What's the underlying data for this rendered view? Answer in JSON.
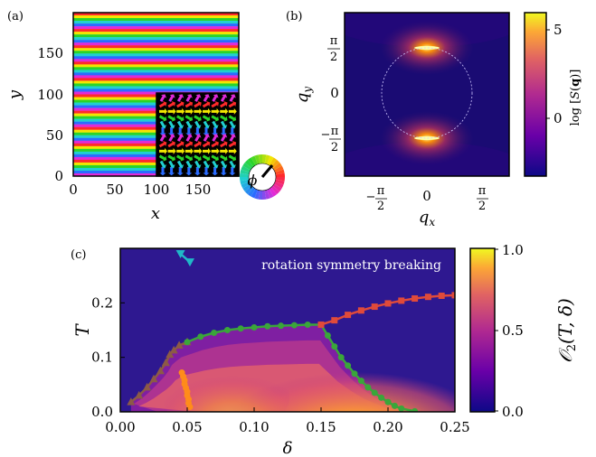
{
  "chart_data": [
    {
      "panel": "(a)",
      "type": "heatmap",
      "xlabel": "x",
      "ylabel": "y",
      "xlim": [
        0,
        200
      ],
      "ylim": [
        0,
        200
      ],
      "xticks": [
        0,
        50,
        100,
        150
      ],
      "yticks": [
        0,
        50,
        100,
        150
      ],
      "inset_region": {
        "x": [
          100,
          200
        ],
        "y": [
          0,
          100
        ]
      },
      "colorwheel_label": "ϕ",
      "colors": {
        "red": "#ff2a2a",
        "yellow": "#f2e600",
        "green": "#2ad42a",
        "cyan": "#20d0d0",
        "blue": "#2a6cff",
        "magenta": "#e02ad8"
      }
    },
    {
      "panel": "(b)",
      "type": "heatmap",
      "xlabel": "q_x",
      "ylabel": "q_y",
      "xticks": [
        "−π/2",
        "0",
        "π/2"
      ],
      "yticks": [
        "π/2",
        "0",
        "−π/2"
      ],
      "peaks": [
        {
          "qx": 0,
          "qy": 1.57
        },
        {
          "qx": 0,
          "qy": -1.57
        }
      ],
      "colorbar_label": "log[S(q)]",
      "colorbar_ticks": [
        5,
        0
      ],
      "colormap": "plasma"
    },
    {
      "panel": "(c)",
      "type": "heatmap",
      "xlabel": "δ",
      "ylabel": "T",
      "xlim": [
        0,
        0.25
      ],
      "ylim": [
        0,
        0.3
      ],
      "xticks": [
        "0.00",
        "0.05",
        "0.10",
        "0.15",
        "0.20",
        "0.25"
      ],
      "yticks": [
        "0.0",
        "0.1",
        "0.2"
      ],
      "annotation": "rotation symmetry breaking",
      "colorbar_label": "O₂(T, δ)",
      "colorbar_ticks": [
        "1.0",
        "0.5",
        "0.0"
      ],
      "colormap": "plasma",
      "series": [
        {
          "marker": "triangle",
          "color": "#8c5a46",
          "x": [
            0.008,
            0.014,
            0.02,
            0.025,
            0.03,
            0.034,
            0.037,
            0.04,
            0.044,
            0.05
          ],
          "y": [
            0.018,
            0.03,
            0.045,
            0.06,
            0.075,
            0.09,
            0.105,
            0.113,
            0.122,
            0.128
          ]
        },
        {
          "marker": "circle",
          "color": "#3aa63a",
          "x": [
            0.05,
            0.06,
            0.07,
            0.08,
            0.09,
            0.1,
            0.11,
            0.12,
            0.13,
            0.14,
            0.15,
            0.155,
            0.16,
            0.165,
            0.17,
            0.175,
            0.18,
            0.185,
            0.19,
            0.195,
            0.2,
            0.205,
            0.21,
            0.22
          ],
          "y": [
            0.128,
            0.138,
            0.145,
            0.15,
            0.153,
            0.155,
            0.157,
            0.158,
            0.159,
            0.16,
            0.16,
            0.14,
            0.12,
            0.1,
            0.085,
            0.07,
            0.057,
            0.045,
            0.035,
            0.026,
            0.018,
            0.011,
            0.006,
            0.001
          ]
        },
        {
          "marker": "square",
          "color": "#e04a3a",
          "x": [
            0.15,
            0.16,
            0.17,
            0.18,
            0.19,
            0.2,
            0.21,
            0.22,
            0.23,
            0.24,
            0.25
          ],
          "y": [
            0.16,
            0.168,
            0.178,
            0.186,
            0.193,
            0.199,
            0.204,
            0.208,
            0.211,
            0.213,
            0.214
          ]
        },
        {
          "marker": "circle",
          "color": "#ff8c1a",
          "x": [
            0.046,
            0.047,
            0.048,
            0.048,
            0.049,
            0.05,
            0.05,
            0.051,
            0.051,
            0.052
          ],
          "y": [
            0.072,
            0.065,
            0.058,
            0.051,
            0.044,
            0.037,
            0.03,
            0.023,
            0.016,
            0.009
          ]
        },
        {
          "marker": "triangle-down",
          "color": "#20b8c8",
          "x": [
            0.045,
            0.052
          ],
          "y": [
            0.29,
            0.275
          ]
        }
      ]
    }
  ]
}
